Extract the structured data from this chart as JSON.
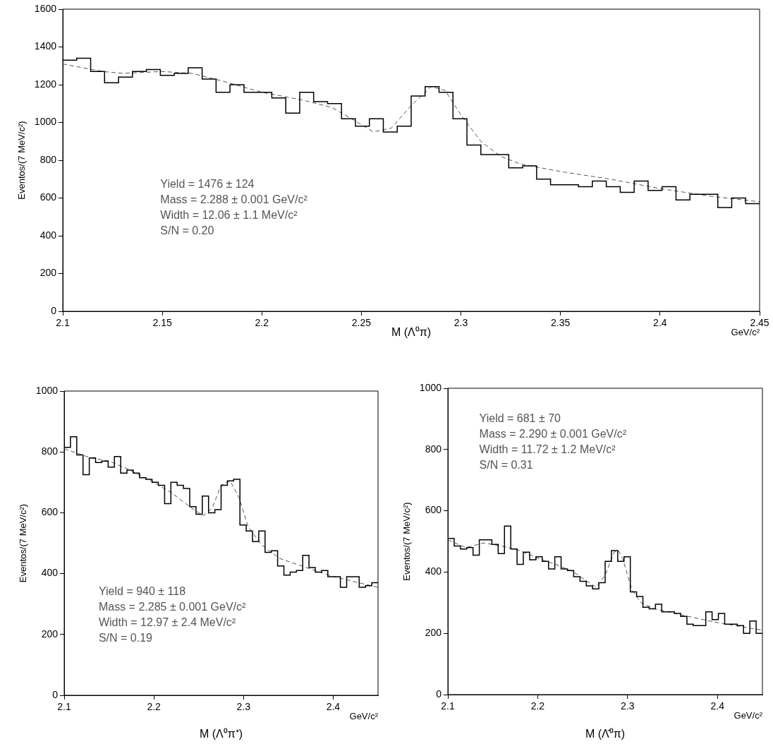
{
  "chart_data": [
    {
      "type": "histogram",
      "xlabel": "M (Λ⁰π)",
      "ylabel": "Eventos/(7 MeV/c²)",
      "xlim": [
        2.1,
        2.45
      ],
      "xticks": [
        2.1,
        2.15,
        2.2,
        2.25,
        2.3,
        2.35,
        2.4,
        2.45
      ],
      "ylim": [
        0,
        1600
      ],
      "yticks": [
        0,
        200,
        400,
        600,
        800,
        1000,
        1200,
        1400,
        1600
      ],
      "bins": [
        2.1,
        2.107,
        2.114,
        2.121,
        2.128,
        2.135,
        2.142,
        2.149,
        2.156,
        2.163,
        2.17,
        2.177,
        2.184,
        2.191,
        2.198,
        2.205,
        2.212,
        2.219,
        2.226,
        2.233,
        2.24,
        2.247,
        2.254,
        2.261,
        2.268,
        2.275,
        2.282,
        2.289,
        2.296,
        2.303,
        2.31,
        2.317,
        2.324,
        2.331,
        2.338,
        2.345,
        2.352,
        2.359,
        2.366,
        2.373,
        2.38,
        2.387,
        2.394,
        2.401,
        2.408,
        2.415,
        2.422,
        2.429,
        2.436,
        2.443,
        2.45
      ],
      "series": [
        {
          "type": "histogram",
          "color": "#000000",
          "values": [
            1330,
            1340,
            1270,
            1210,
            1240,
            1270,
            1280,
            1250,
            1260,
            1290,
            1230,
            1160,
            1200,
            1160,
            1160,
            1130,
            1050,
            1160,
            1110,
            1100,
            1020,
            980,
            1020,
            950,
            980,
            1140,
            1190,
            1160,
            1020,
            880,
            830,
            830,
            760,
            770,
            700,
            670,
            670,
            660,
            690,
            660,
            630,
            690,
            640,
            660,
            590,
            620,
            620,
            550,
            600,
            570
          ]
        },
        {
          "type": "line",
          "color": "#555555",
          "line_style": "dashed",
          "x": [
            2.1,
            2.12,
            2.13,
            2.15,
            2.165,
            2.18,
            2.2,
            2.22,
            2.235,
            2.245,
            2.256,
            2.265,
            2.275,
            2.285,
            2.292,
            2.3,
            2.31,
            2.32,
            2.33,
            2.35,
            2.375,
            2.4,
            2.425,
            2.45
          ],
          "values": [
            1310,
            1270,
            1260,
            1270,
            1260,
            1220,
            1160,
            1120,
            1080,
            1020,
            950,
            970,
            1090,
            1190,
            1170,
            1040,
            900,
            820,
            780,
            740,
            700,
            650,
            610,
            580
          ]
        }
      ],
      "annotations": [
        "GeV/c²",
        "Yield = 1476 ± 124",
        "Mass = 2.288 ± 0.001 GeV/c²",
        "Width = 12.06 ± 1.1 MeV/c²",
        "S/N = 0.20"
      ]
    },
    {
      "type": "histogram",
      "xlabel": "M (Λ⁰π⁺)",
      "ylabel": "Eventos/(7 MeV/c²)",
      "xlim": [
        2.1,
        2.45
      ],
      "xticks": [
        2.1,
        2.2,
        2.3,
        2.4
      ],
      "ylim": [
        0,
        1000
      ],
      "yticks": [
        0,
        200,
        400,
        600,
        800,
        1000
      ],
      "bins": [
        2.1,
        2.107,
        2.114,
        2.121,
        2.128,
        2.135,
        2.142,
        2.149,
        2.156,
        2.163,
        2.17,
        2.177,
        2.184,
        2.191,
        2.198,
        2.205,
        2.212,
        2.219,
        2.226,
        2.233,
        2.24,
        2.247,
        2.254,
        2.261,
        2.268,
        2.275,
        2.282,
        2.289,
        2.296,
        2.303,
        2.31,
        2.317,
        2.324,
        2.331,
        2.338,
        2.345,
        2.352,
        2.359,
        2.366,
        2.373,
        2.38,
        2.387,
        2.394,
        2.401,
        2.408,
        2.415,
        2.422,
        2.429,
        2.436,
        2.443,
        2.45
      ],
      "series": [
        {
          "type": "histogram",
          "color": "#000000",
          "values": [
            815,
            850,
            790,
            725,
            780,
            765,
            770,
            750,
            785,
            730,
            740,
            730,
            715,
            710,
            700,
            690,
            630,
            700,
            690,
            680,
            620,
            595,
            655,
            600,
            610,
            690,
            705,
            710,
            560,
            540,
            505,
            540,
            470,
            475,
            425,
            395,
            405,
            410,
            460,
            420,
            405,
            410,
            390,
            390,
            355,
            390,
            390,
            355,
            360,
            370
          ]
        },
        {
          "type": "line",
          "color": "#555555",
          "line_style": "dashed",
          "x": [
            2.1,
            2.13,
            2.15,
            2.17,
            2.2,
            2.22,
            2.24,
            2.255,
            2.265,
            2.275,
            2.285,
            2.295,
            2.305,
            2.32,
            2.34,
            2.37,
            2.4,
            2.45
          ],
          "values": [
            810,
            780,
            770,
            745,
            700,
            665,
            620,
            590,
            615,
            690,
            705,
            650,
            555,
            495,
            450,
            420,
            390,
            355
          ]
        }
      ],
      "annotations": [
        "GeV/c²",
        "Yield = 940 ± 118",
        "Mass = 2.285 ± 0.001 GeV/c²",
        "Width = 12.97 ± 2.4 MeV/c²",
        "S/N = 0.19"
      ]
    },
    {
      "type": "histogram",
      "xlabel": "M (Λ̄⁰π)",
      "ylabel": "Eventos/(7 MeV/c²)",
      "xlim": [
        2.1,
        2.45
      ],
      "xticks": [
        2.1,
        2.2,
        2.3,
        2.4
      ],
      "ylim": [
        0,
        1000
      ],
      "yticks": [
        0,
        200,
        400,
        600,
        800,
        1000
      ],
      "bins": [
        2.1,
        2.107,
        2.114,
        2.121,
        2.128,
        2.135,
        2.142,
        2.149,
        2.156,
        2.163,
        2.17,
        2.177,
        2.184,
        2.191,
        2.198,
        2.205,
        2.212,
        2.219,
        2.226,
        2.233,
        2.24,
        2.247,
        2.254,
        2.261,
        2.268,
        2.275,
        2.282,
        2.289,
        2.296,
        2.303,
        2.31,
        2.317,
        2.324,
        2.331,
        2.338,
        2.345,
        2.352,
        2.359,
        2.366,
        2.373,
        2.38,
        2.387,
        2.394,
        2.401,
        2.408,
        2.415,
        2.422,
        2.429,
        2.436,
        2.443,
        2.45
      ],
      "series": [
        {
          "type": "histogram",
          "color": "#000000",
          "values": [
            510,
            485,
            475,
            480,
            455,
            505,
            505,
            490,
            460,
            550,
            475,
            425,
            465,
            440,
            450,
            435,
            410,
            450,
            410,
            405,
            385,
            370,
            355,
            345,
            365,
            435,
            470,
            435,
            450,
            335,
            320,
            285,
            280,
            295,
            270,
            270,
            265,
            255,
            230,
            225,
            225,
            270,
            245,
            265,
            230,
            230,
            225,
            200,
            240,
            200
          ]
        },
        {
          "type": "line",
          "color": "#555555",
          "line_style": "dashed",
          "x": [
            2.1,
            2.12,
            2.14,
            2.16,
            2.18,
            2.2,
            2.22,
            2.24,
            2.26,
            2.265,
            2.275,
            2.285,
            2.29,
            2.295,
            2.305,
            2.315,
            2.33,
            2.36,
            2.4,
            2.45
          ],
          "values": [
            505,
            480,
            495,
            485,
            470,
            445,
            425,
            400,
            360,
            350,
            390,
            465,
            470,
            440,
            340,
            300,
            280,
            260,
            235,
            210
          ]
        }
      ],
      "annotations": [
        "GeV/c²",
        "Yield = 681 ± 70",
        "Mass = 2.290 ± 0.001 GeV/c²",
        "Width = 11.72 ± 1.2 MeV/c²",
        "S/N = 0.31"
      ]
    }
  ]
}
